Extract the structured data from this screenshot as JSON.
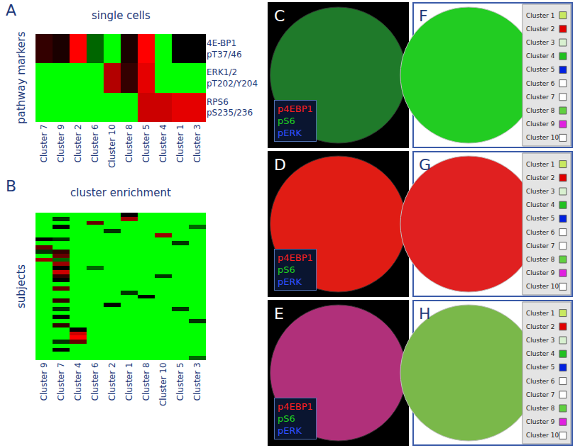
{
  "chart_data": [
    {
      "type": "heatmap",
      "panel": "A",
      "title": "single cells",
      "y_label": "pathway markers",
      "categories": [
        "Cluster 7",
        "Cluster 9",
        "Cluster 2",
        "Cluster 6",
        "Cluster 10",
        "Cluster 8",
        "Cluster 5",
        "Cluster 4",
        "Cluster 1",
        "Cluster 3"
      ],
      "rows": [
        "4E-BP1 pT37/46",
        "ERK1/2 pT202/Y204",
        "RPS6 pS235/236"
      ],
      "z": [
        [
          0.6,
          0.55,
          1,
          0.3,
          0,
          0.55,
          1,
          0,
          0.5,
          0.5
        ],
        [
          0,
          0,
          0,
          0,
          0.85,
          0.6,
          0.95,
          0,
          0,
          0
        ],
        [
          0,
          0,
          0,
          0,
          0,
          0,
          0.9,
          0.9,
          0.95,
          0.95
        ]
      ],
      "zlim": [
        0,
        1
      ],
      "colors": [
        "#00ff00",
        "#000000",
        "#ff0000"
      ]
    },
    {
      "type": "heatmap",
      "panel": "B",
      "title": "cluster enrichment",
      "y_label": "subjects",
      "tick_labels": "x",
      "categories": [
        "Cluster 9",
        "Cluster 7",
        "Cluster 4",
        "Cluster 6",
        "Cluster 2",
        "Cluster 1",
        "Cluster 8",
        "Cluster 10",
        "Cluster 5",
        "Cluster 3"
      ],
      "z": [
        [
          0,
          0,
          0,
          0,
          0,
          0.5,
          0,
          0,
          0,
          0
        ],
        [
          0,
          0.4,
          0,
          0,
          0,
          0.8,
          0,
          0,
          0,
          0
        ],
        [
          0,
          0,
          0,
          0.7,
          0,
          0,
          0,
          0,
          0,
          0
        ],
        [
          0,
          0.5,
          0,
          0,
          0,
          0,
          0,
          0,
          0,
          0.3
        ],
        [
          0,
          0,
          0,
          0,
          0.4,
          0,
          0,
          0,
          0,
          0
        ],
        [
          0,
          0,
          0,
          0,
          0,
          0,
          0,
          0.8,
          0,
          0
        ],
        [
          0.5,
          0.4,
          0,
          0,
          0,
          0,
          0,
          0,
          0,
          0
        ],
        [
          0,
          0,
          0,
          0,
          0,
          0,
          0,
          0,
          0.4,
          0
        ],
        [
          0.7,
          0,
          0,
          0,
          0,
          0,
          0,
          0,
          0,
          0
        ],
        [
          0.4,
          0.6,
          0,
          0,
          0,
          0,
          0,
          0,
          0,
          0
        ],
        [
          0,
          0.7,
          0,
          0,
          0,
          0,
          0,
          0,
          0,
          0
        ],
        [
          0.8,
          0.3,
          0,
          0,
          0,
          0,
          0,
          0,
          0,
          0
        ],
        [
          0,
          0.8,
          0,
          0,
          0,
          0,
          0,
          0,
          0,
          0
        ],
        [
          0,
          0.5,
          0,
          0.3,
          0,
          0,
          0,
          0,
          0,
          0
        ],
        [
          0,
          0.9,
          0,
          0,
          0,
          0,
          0,
          0,
          0,
          0
        ],
        [
          0,
          0.6,
          0,
          0,
          0,
          0,
          0,
          0.4,
          0,
          0
        ],
        [
          0,
          0.5,
          0,
          0,
          0,
          0,
          0,
          0,
          0,
          0
        ],
        [
          0,
          0,
          0,
          0,
          0,
          0,
          0,
          0,
          0,
          0
        ],
        [
          0,
          0.7,
          0,
          0,
          0,
          0,
          0,
          0,
          0,
          0
        ],
        [
          0,
          0,
          0,
          0,
          0,
          0.4,
          0,
          0,
          0,
          0
        ],
        [
          0,
          0,
          0,
          0,
          0,
          0,
          0.5,
          0,
          0,
          0
        ],
        [
          0,
          0.6,
          0,
          0,
          0,
          0,
          0,
          0,
          0,
          0
        ],
        [
          0,
          0,
          0,
          0,
          0.5,
          0,
          0,
          0,
          0,
          0
        ],
        [
          0,
          0.4,
          0,
          0,
          0,
          0,
          0,
          0,
          0.4,
          0
        ],
        [
          0,
          0,
          0,
          0,
          0,
          0,
          0,
          0,
          0,
          0
        ],
        [
          0,
          0.5,
          0,
          0,
          0,
          0,
          0,
          0,
          0,
          0
        ],
        [
          0,
          0,
          0,
          0,
          0,
          0,
          0,
          0,
          0,
          0.4
        ],
        [
          0,
          0.6,
          0,
          0,
          0,
          0,
          0,
          0,
          0,
          0
        ],
        [
          0,
          0,
          0.5,
          0,
          0,
          0,
          0,
          0,
          0,
          0
        ],
        [
          0,
          0,
          0.9,
          0,
          0,
          0,
          0,
          0,
          0,
          0
        ],
        [
          0,
          0,
          1,
          0,
          0,
          0,
          0,
          0,
          0,
          0
        ],
        [
          0,
          0.4,
          0.7,
          0,
          0,
          0,
          0,
          0,
          0,
          0
        ],
        [
          0,
          0,
          0,
          0,
          0,
          0,
          0,
          0,
          0,
          0
        ],
        [
          0,
          0.5,
          0,
          0,
          0,
          0,
          0,
          0,
          0,
          0
        ],
        [
          0,
          0,
          0,
          0,
          0,
          0,
          0,
          0,
          0,
          0
        ],
        [
          0,
          0,
          0,
          0,
          0,
          0,
          0,
          0,
          0,
          0.3
        ]
      ],
      "zlim": [
        0,
        1
      ],
      "colors": [
        "#00ff00",
        "#000000",
        "#ff0000"
      ]
    }
  ],
  "image_panels": [
    {
      "panel": "C",
      "color": "#1f7a2a",
      "legend": [
        {
          "text": "p4EBP1",
          "color": "#ff2020"
        },
        {
          "text": "pS6",
          "color": "#20d020"
        },
        {
          "text": "pERK",
          "color": "#3050ff"
        }
      ]
    },
    {
      "panel": "D",
      "color": "#e01c14",
      "legend": [
        {
          "text": "p4EBP1",
          "color": "#ff2020"
        },
        {
          "text": "pS6",
          "color": "#20d020"
        },
        {
          "text": "pERK",
          "color": "#3050ff"
        }
      ]
    },
    {
      "panel": "E",
      "color": "#b0307a",
      "legend": [
        {
          "text": "p4EBP1",
          "color": "#ff2020"
        },
        {
          "text": "pS6",
          "color": "#20d020"
        },
        {
          "text": "pERK",
          "color": "#3050ff"
        }
      ]
    },
    {
      "panel": "F",
      "color": "#22cc22"
    },
    {
      "panel": "G",
      "color": "#e02020"
    },
    {
      "panel": "H",
      "color": "#7ab84a"
    }
  ],
  "cluster_legend": [
    {
      "name": "Cluster 1",
      "color": "#c8e860"
    },
    {
      "name": "Cluster 2",
      "color": "#e00000"
    },
    {
      "name": "Cluster 3",
      "color": "#d8f0d0"
    },
    {
      "name": "Cluster 4",
      "color": "#20c020"
    },
    {
      "name": "Cluster 5",
      "color": "#0020e0"
    },
    {
      "name": "Cluster 6",
      "color": "#ffffff"
    },
    {
      "name": "Cluster 7",
      "color": "#ffffff"
    },
    {
      "name": "Cluster 8",
      "color": "#60d040"
    },
    {
      "name": "Cluster 9",
      "color": "#e020e0"
    },
    {
      "name": "Cluster 10",
      "color": "#ffffff"
    }
  ]
}
